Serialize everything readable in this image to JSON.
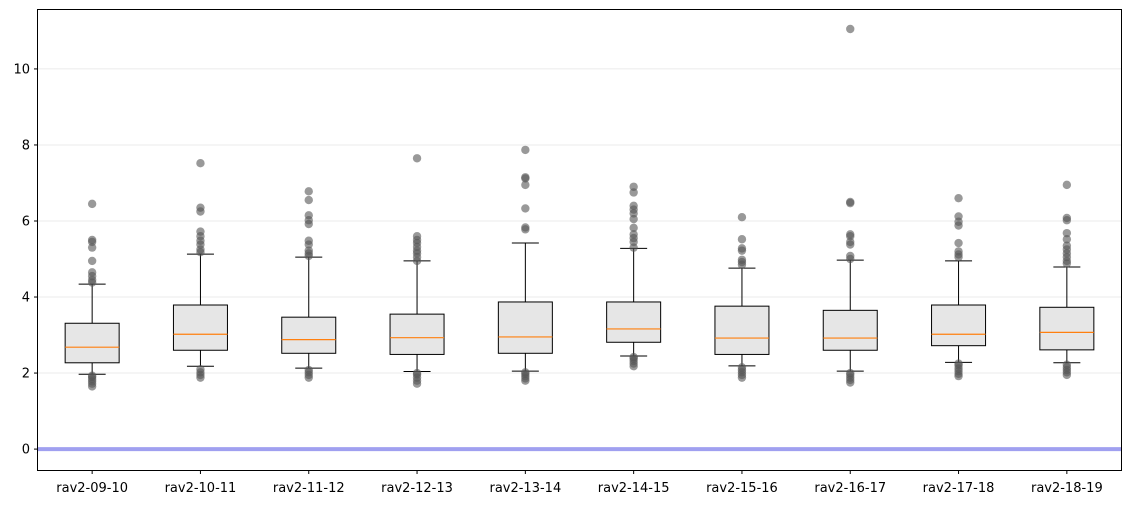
{
  "chart_data": {
    "type": "box",
    "title": "",
    "xlabel": "",
    "ylabel": "",
    "ylim": [
      -0.55,
      11.55
    ],
    "yticks": [
      0,
      2,
      4,
      6,
      8,
      10
    ],
    "grid": "horizontal",
    "reference_line": {
      "y": 0,
      "color": "#a0a0f0"
    },
    "colors": {
      "box_fill": "#e6e6e6",
      "median": "#ff7f0e",
      "outlier": "#555555",
      "grid": "#ebebeb"
    },
    "categories": [
      "rav2-09-10",
      "rav2-10-11",
      "rav2-11-12",
      "rav2-12-13",
      "rav2-13-14",
      "rav2-14-15",
      "rav2-15-16",
      "rav2-16-17",
      "rav2-17-18",
      "rav2-18-19"
    ],
    "boxes": [
      {
        "whislo": 1.97,
        "q1": 2.27,
        "med": 2.68,
        "q3": 3.31,
        "whishi": 4.34,
        "fliers": [
          1.65,
          1.72,
          1.78,
          1.84,
          1.9,
          1.93,
          4.38,
          4.45,
          4.55,
          4.65,
          4.95,
          5.3,
          5.45,
          5.5,
          6.45
        ]
      },
      {
        "whislo": 2.18,
        "q1": 2.6,
        "med": 3.02,
        "q3": 3.79,
        "whishi": 5.13,
        "fliers": [
          1.88,
          1.95,
          2.02,
          2.1,
          5.18,
          5.25,
          5.38,
          5.48,
          5.6,
          5.72,
          6.25,
          6.35,
          7.52
        ]
      },
      {
        "whislo": 2.13,
        "q1": 2.52,
        "med": 2.88,
        "q3": 3.47,
        "whishi": 5.05,
        "fliers": [
          1.88,
          1.95,
          2.02,
          2.08,
          5.08,
          5.15,
          5.22,
          5.38,
          5.48,
          5.92,
          6.02,
          6.15,
          6.55,
          6.78
        ]
      },
      {
        "whislo": 2.04,
        "q1": 2.49,
        "med": 2.93,
        "q3": 3.55,
        "whishi": 4.95,
        "fliers": [
          1.72,
          1.8,
          1.88,
          1.96,
          2.0,
          4.95,
          5.05,
          5.15,
          5.22,
          5.32,
          5.42,
          5.5,
          5.6,
          7.65
        ]
      },
      {
        "whislo": 2.05,
        "q1": 2.52,
        "med": 2.95,
        "q3": 3.87,
        "whishi": 5.42,
        "fliers": [
          1.8,
          1.86,
          1.92,
          1.98,
          2.02,
          5.78,
          5.83,
          6.33,
          6.95,
          7.12,
          7.15,
          7.87
        ]
      },
      {
        "whislo": 2.45,
        "q1": 2.81,
        "med": 3.16,
        "q3": 3.87,
        "whishi": 5.28,
        "fliers": [
          2.18,
          2.25,
          2.32,
          2.38,
          2.42,
          5.3,
          5.45,
          5.55,
          5.65,
          5.82,
          6.05,
          6.2,
          6.3,
          6.4,
          6.75,
          6.9
        ]
      },
      {
        "whislo": 2.19,
        "q1": 2.49,
        "med": 2.92,
        "q3": 3.76,
        "whishi": 4.76,
        "fliers": [
          1.88,
          1.95,
          2.02,
          2.08,
          2.15,
          4.85,
          4.92,
          4.98,
          5.22,
          5.28,
          5.52,
          6.1
        ]
      },
      {
        "whislo": 2.05,
        "q1": 2.6,
        "med": 2.92,
        "q3": 3.65,
        "whishi": 4.97,
        "fliers": [
          1.75,
          1.82,
          1.88,
          1.95,
          2.0,
          5.0,
          5.08,
          5.38,
          5.45,
          5.6,
          5.65,
          6.47,
          6.5,
          11.05
        ]
      },
      {
        "whislo": 2.28,
        "q1": 2.72,
        "med": 3.02,
        "q3": 3.79,
        "whishi": 4.95,
        "fliers": [
          1.92,
          1.98,
          2.05,
          2.12,
          2.2,
          2.25,
          5.05,
          5.12,
          5.2,
          5.42,
          5.88,
          5.98,
          6.12,
          6.6
        ]
      },
      {
        "whislo": 2.27,
        "q1": 2.61,
        "med": 3.07,
        "q3": 3.73,
        "whishi": 4.79,
        "fliers": [
          1.95,
          2.02,
          2.08,
          2.15,
          2.22,
          4.88,
          4.95,
          5.05,
          5.15,
          5.25,
          5.35,
          5.52,
          5.68,
          6.02,
          6.08,
          6.95
        ]
      }
    ]
  }
}
